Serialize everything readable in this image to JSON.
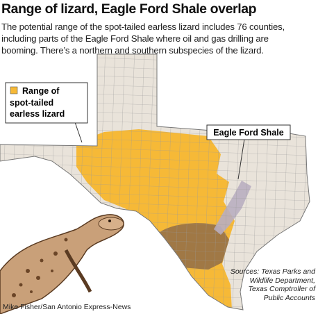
{
  "header": {
    "title": "Range of lizard, Eagle Ford Shale overlap",
    "description_lines": [
      "The potential range of the spot-tailed earless lizard includes 76 counties,",
      "including parts of the Eagle Ford Shale where oil and gas drilling are",
      "booming. There’s a northern and southern subspecies of the lizard."
    ]
  },
  "map": {
    "legend": {
      "label_lines": [
        "Range of",
        "spot-tailed",
        "earless lizard"
      ]
    },
    "callout": "Eagle Ford Shale"
  },
  "footer": {
    "sources_lines": [
      "Sources: Texas Parks and",
      "Wildlife Department,",
      "Texas Comptroller of",
      "Public Accounts"
    ],
    "credit": "Mike Fisher/San Antonio Express-News"
  }
}
